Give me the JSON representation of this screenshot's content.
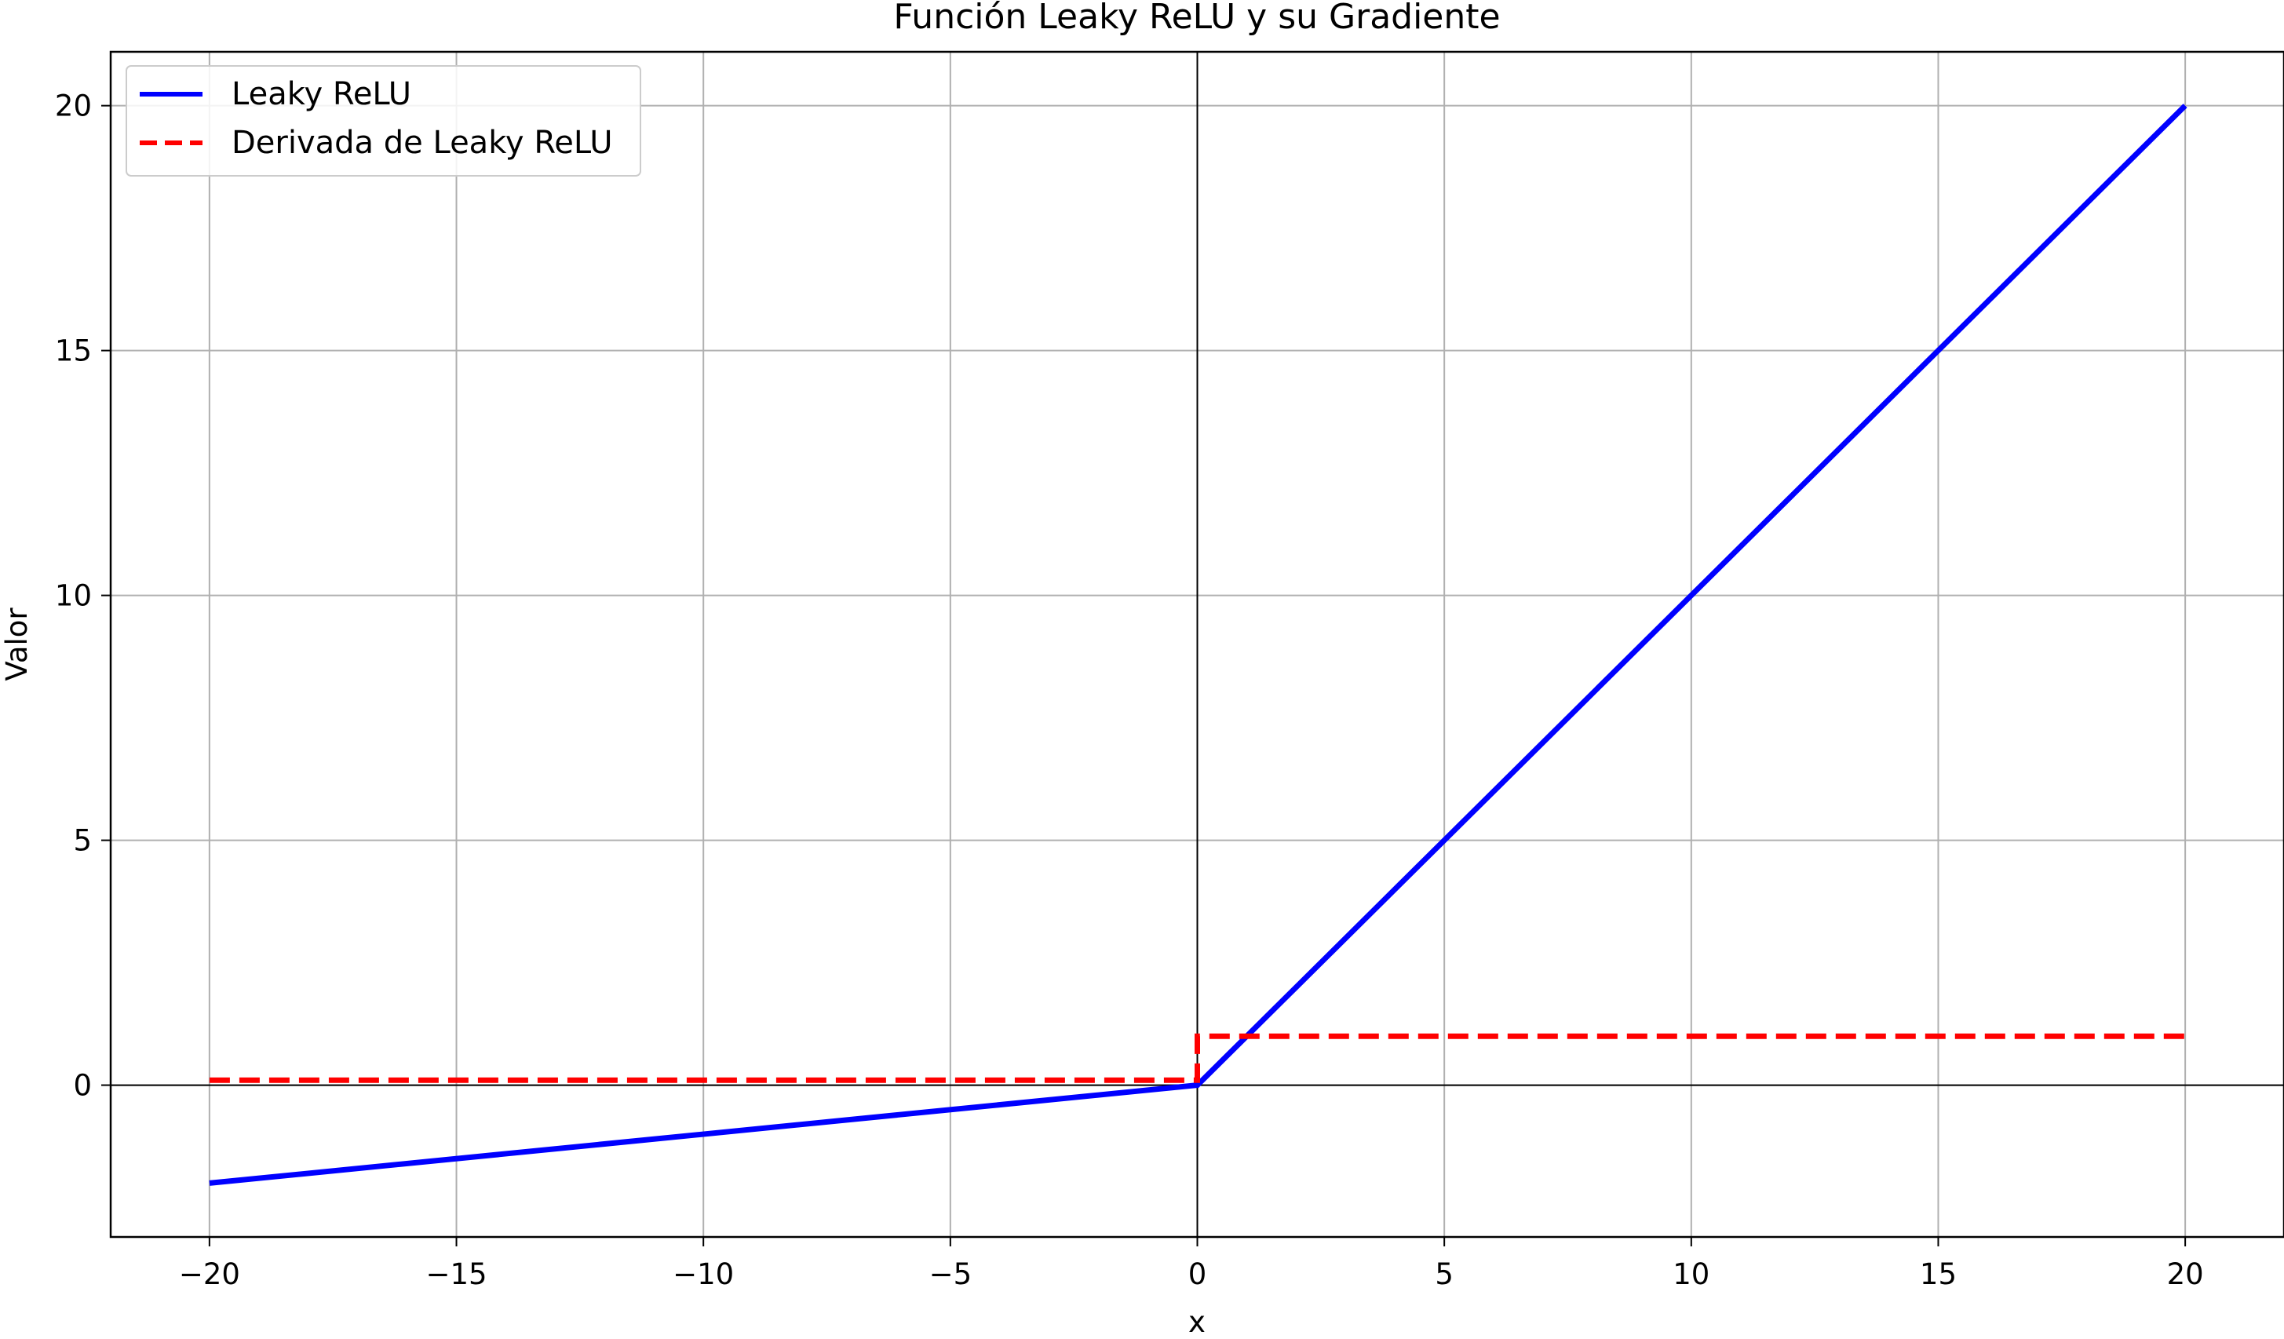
{
  "chart_data": {
    "type": "line",
    "title": "Función Leaky ReLU y su Gradiente",
    "xlabel": "x",
    "ylabel": "Valor",
    "xlim": [
      -22,
      22
    ],
    "ylim": [
      -3.1,
      21.1
    ],
    "xticks": [
      -20,
      -15,
      -10,
      -5,
      0,
      5,
      10,
      15,
      20
    ],
    "yticks": [
      0,
      5,
      10,
      15,
      20
    ],
    "xtick_labels": [
      "−20",
      "−15",
      "−10",
      "−5",
      "0",
      "5",
      "10",
      "15",
      "20"
    ],
    "ytick_labels": [
      "0",
      "5",
      "10",
      "15",
      "20"
    ],
    "grid": true,
    "legend_position": "top-left",
    "reference_lines": {
      "x": 0,
      "y": 0
    },
    "series": [
      {
        "name": "Leaky ReLU",
        "color": "#0000ff",
        "style": "solid",
        "x": [
          -20,
          0,
          20
        ],
        "y": [
          -2,
          0,
          20
        ]
      },
      {
        "name": "Derivada de Leaky ReLU",
        "color": "#ff0000",
        "style": "dashed",
        "x": [
          -20,
          0,
          0,
          20
        ],
        "y": [
          0.1,
          0.1,
          1,
          1
        ]
      }
    ]
  }
}
